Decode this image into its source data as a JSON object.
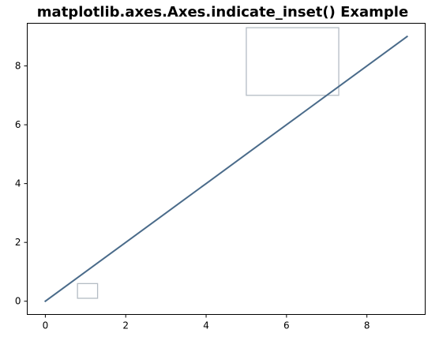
{
  "chart_data": {
    "type": "line",
    "title": "matplotlib.axes.Axes.indicate_inset() Example",
    "xlabel": "",
    "ylabel": "",
    "xlim": [
      -0.45,
      9.45
    ],
    "ylim": [
      -0.45,
      9.45
    ],
    "xticks": [
      0,
      2,
      4,
      6,
      8
    ],
    "yticks": [
      0,
      2,
      4,
      6,
      8
    ],
    "grid": false,
    "x": [
      0,
      1,
      2,
      3,
      4,
      5,
      6,
      7,
      8,
      9
    ],
    "series": [
      {
        "values": [
          0,
          1,
          2,
          3,
          4,
          5,
          6,
          7,
          8,
          9
        ],
        "color": "#4a6b8a"
      }
    ],
    "inset_indicators": [
      {
        "x0": 0.8,
        "x1": 1.3,
        "y0": 0.1,
        "y1": 0.6,
        "color": "#b4bcc4"
      },
      {
        "x0": 5.0,
        "x1": 7.3,
        "y0": 7.0,
        "y1": 9.3,
        "color": "#b4bcc4"
      }
    ]
  }
}
